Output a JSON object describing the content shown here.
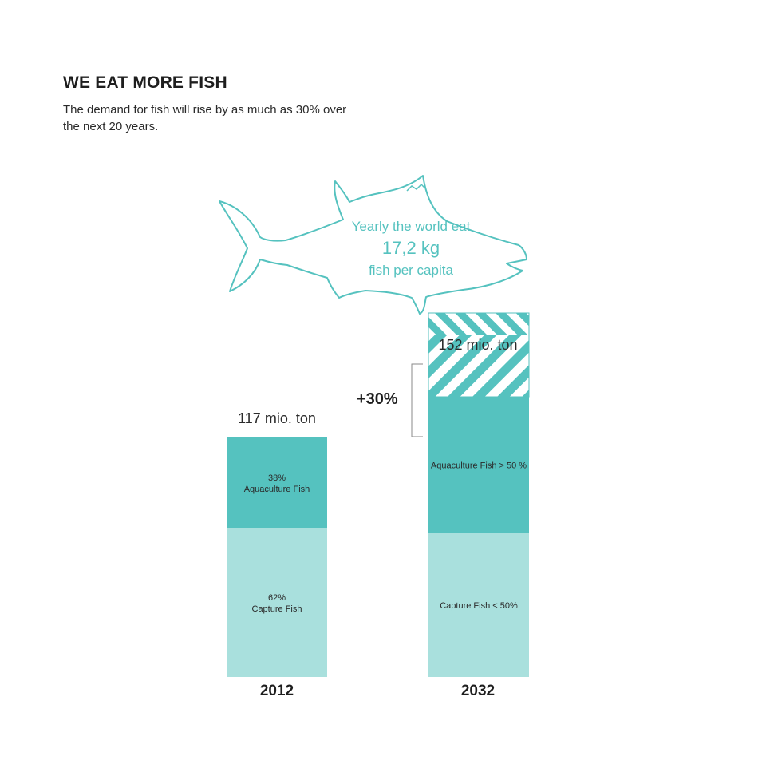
{
  "header": {
    "title": "WE EAT MORE FISH",
    "subtitle": "The demand for fish will rise by as much as 30% over the next 20 years."
  },
  "fish": {
    "line1": "Yearly the world eat",
    "line2": "17,2 kg",
    "line3": "fish per capita",
    "icon": "tuna-fish-outline-icon"
  },
  "colors": {
    "accent": "#55c2bf",
    "aquaculture": "#55c2bf",
    "capture": "#a9e0dd",
    "text": "#1e1e1e"
  },
  "chart_data": {
    "type": "bar",
    "stacked": true,
    "categories": [
      "2012",
      "2032"
    ],
    "totals": [
      "117 mio. ton",
      "152 mio. ton"
    ],
    "total_values": [
      117,
      152
    ],
    "unit": "mio. ton",
    "increase_label": "+30%",
    "segments": [
      {
        "category": "2012",
        "parts": [
          {
            "key": "capture",
            "value": 62,
            "label_lines": [
              "62%",
              "Capture Fish"
            ]
          },
          {
            "key": "aquaculture",
            "value": 38,
            "label_lines": [
              "38%",
              "Aquaculture Fish"
            ]
          }
        ]
      },
      {
        "category": "2032",
        "parts": [
          {
            "key": "capture",
            "value": 60,
            "label_lines": [
              "Capture Fish < 50%"
            ]
          },
          {
            "key": "aquaculture",
            "value": 57,
            "label_lines": [
              "Aquaculture Fish > 50 %"
            ]
          },
          {
            "key": "increase",
            "value": 35,
            "pattern": "hatched",
            "label_lines": []
          }
        ]
      }
    ]
  }
}
